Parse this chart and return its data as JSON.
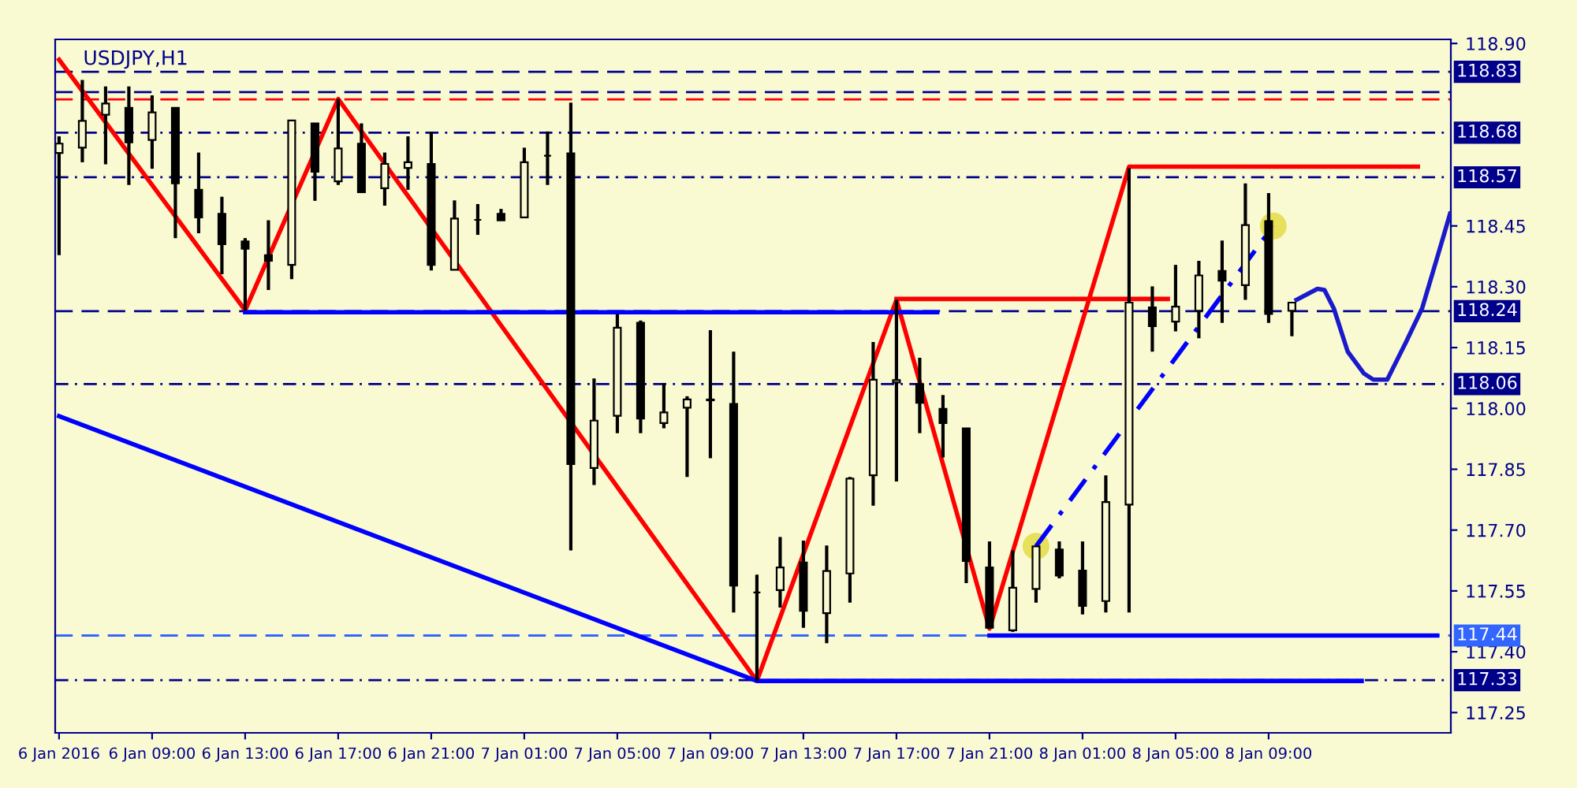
{
  "chart_data": {
    "type": "candlestick",
    "title": "USDJPY,H1",
    "color": "#000000",
    "x": [
      "2016-01-06T05:00",
      "2016-01-06T06:00",
      "2016-01-06T07:00",
      "2016-01-06T08:00",
      "2016-01-06T09:00",
      "2016-01-06T10:00",
      "2016-01-06T11:00",
      "2016-01-06T12:00",
      "2016-01-06T13:00",
      "2016-01-06T14:00",
      "2016-01-06T15:00",
      "2016-01-06T16:00",
      "2016-01-06T17:00",
      "2016-01-06T18:00",
      "2016-01-06T19:00",
      "2016-01-06T20:00",
      "2016-01-06T21:00",
      "2016-01-06T22:00",
      "2016-01-06T23:00",
      "2016-01-07T00:00",
      "2016-01-07T01:00",
      "2016-01-07T02:00",
      "2016-01-07T03:00",
      "2016-01-07T04:00",
      "2016-01-07T05:00",
      "2016-01-07T06:00",
      "2016-01-07T07:00",
      "2016-01-07T08:00",
      "2016-01-07T09:00",
      "2016-01-07T10:00",
      "2016-01-07T11:00",
      "2016-01-07T12:00",
      "2016-01-07T13:00",
      "2016-01-07T14:00",
      "2016-01-07T15:00",
      "2016-01-07T16:00",
      "2016-01-07T17:00",
      "2016-01-07T18:00",
      "2016-01-07T19:00",
      "2016-01-07T20:00",
      "2016-01-07T21:00",
      "2016-01-07T22:00",
      "2016-01-07T23:00",
      "2016-01-08T00:00",
      "2016-01-08T01:00",
      "2016-01-08T02:00",
      "2016-01-08T03:00",
      "2016-01-08T04:00",
      "2016-01-08T05:00",
      "2016-01-08T06:00",
      "2016-01-08T07:00",
      "2016-01-08T08:00",
      "2016-01-08T09:00",
      "2016-01-08T10:00"
    ],
    "ohlc": [
      [
        118.63,
        118.671,
        118.378,
        118.653
      ],
      [
        118.643,
        118.81,
        118.607,
        118.709
      ],
      [
        118.724,
        118.794,
        118.602,
        118.752
      ],
      [
        118.741,
        118.794,
        118.551,
        118.656
      ],
      [
        118.662,
        118.772,
        118.591,
        118.73
      ],
      [
        118.741,
        118.741,
        118.42,
        118.555
      ],
      [
        118.539,
        118.631,
        118.432,
        118.471
      ],
      [
        118.48,
        118.522,
        118.331,
        118.405
      ],
      [
        118.412,
        118.42,
        118.241,
        118.394
      ],
      [
        118.378,
        118.464,
        118.292,
        118.364
      ],
      [
        118.354,
        118.71,
        118.319,
        118.71
      ],
      [
        118.703,
        118.703,
        118.512,
        118.584
      ],
      [
        118.56,
        118.763,
        118.551,
        118.641
      ],
      [
        118.653,
        118.703,
        118.531,
        118.533
      ],
      [
        118.543,
        118.631,
        118.5,
        118.603
      ],
      [
        118.593,
        118.671,
        118.539,
        118.607
      ],
      [
        118.603,
        118.682,
        118.34,
        118.354
      ],
      [
        118.342,
        118.513,
        118.342,
        118.468
      ],
      [
        118.465,
        118.504,
        118.428,
        118.465
      ],
      [
        118.48,
        118.492,
        118.464,
        118.464
      ],
      [
        118.471,
        118.643,
        118.471,
        118.607
      ],
      [
        118.623,
        118.683,
        118.551,
        118.623
      ],
      [
        118.629,
        118.754,
        117.65,
        117.863
      ],
      [
        117.853,
        118.074,
        117.811,
        117.97
      ],
      [
        117.982,
        118.233,
        117.939,
        118.199
      ],
      [
        118.211,
        118.217,
        117.939,
        117.975
      ],
      [
        117.964,
        118.062,
        117.951,
        117.99
      ],
      [
        118.002,
        118.03,
        117.831,
        118.022
      ],
      [
        118.02,
        118.193,
        117.877,
        118.022
      ],
      [
        118.011,
        118.14,
        117.497,
        117.563
      ],
      [
        117.546,
        117.59,
        117.328,
        117.546
      ],
      [
        117.552,
        117.683,
        117.509,
        117.608
      ],
      [
        117.62,
        117.674,
        117.459,
        117.501
      ],
      [
        117.495,
        117.662,
        117.421,
        117.599
      ],
      [
        117.593,
        117.831,
        117.521,
        117.827
      ],
      [
        117.835,
        118.164,
        117.76,
        118.071
      ],
      [
        118.064,
        118.268,
        117.82,
        118.07
      ],
      [
        118.06,
        118.125,
        117.939,
        118.014
      ],
      [
        117.999,
        118.033,
        117.879,
        117.964
      ],
      [
        117.951,
        117.951,
        117.569,
        117.624
      ],
      [
        117.608,
        117.672,
        117.459,
        117.459
      ],
      [
        117.453,
        117.65,
        117.449,
        117.558
      ],
      [
        117.555,
        117.66,
        117.521,
        117.66
      ],
      [
        117.652,
        117.672,
        117.581,
        117.588
      ],
      [
        117.6,
        117.672,
        117.492,
        117.513
      ],
      [
        117.525,
        117.835,
        117.497,
        117.769
      ],
      [
        117.763,
        118.593,
        117.497,
        118.261
      ],
      [
        118.249,
        118.301,
        118.14,
        118.203
      ],
      [
        118.214,
        118.354,
        118.19,
        118.251
      ],
      [
        118.241,
        118.364,
        118.173,
        118.328
      ],
      [
        118.339,
        118.414,
        118.211,
        118.315
      ],
      [
        118.304,
        118.555,
        118.268,
        118.452
      ],
      [
        118.462,
        118.531,
        118.211,
        118.233
      ],
      [
        118.241,
        118.261,
        118.178,
        118.261
      ]
    ],
    "series": [
      {
        "type": "line",
        "color": "#ff0000",
        "x": [
          "2016-01-06T05:00",
          "2016-01-06T13:00",
          "2016-01-06T17:00",
          "2016-01-07T11:00",
          "2016-01-07T17:00",
          "2016-01-07T21:00",
          "2016-01-08T03:00",
          "2016-01-08T15:25"
        ],
        "values": [
          118.86,
          118.242,
          118.763,
          117.328,
          118.268,
          117.457,
          118.596,
          118.596
        ]
      },
      {
        "type": "line",
        "color": "#0000ff",
        "x": [
          "2016-01-06T13:00",
          "2016-01-07T18:45"
        ],
        "values": [
          118.237,
          118.237
        ]
      },
      {
        "type": "line",
        "color": "#0000ff",
        "x": [
          "2016-01-07T21:00",
          "2016-01-08T16:15"
        ],
        "values": [
          117.44,
          117.44
        ]
      },
      {
        "type": "line",
        "color": "#ff0000",
        "x": [
          "2016-01-07T17:00",
          "2016-01-08T04:40"
        ],
        "values": [
          118.27,
          118.27
        ]
      },
      {
        "type": "line",
        "color": "#0000ff",
        "x": [
          "2016-01-06T05:00",
          "2016-01-07T11:00",
          "2016-01-08T13:00"
        ],
        "values": [
          117.981,
          117.328,
          117.328
        ]
      },
      {
        "type": "line",
        "color": "#0000ff",
        "line_style": "dotted",
        "x": [
          "2016-01-07T23:00",
          "2016-01-08T09:12"
        ],
        "values": [
          117.66,
          118.45
        ]
      },
      {
        "type": "scatter",
        "color": "#e6e05a",
        "x": [
          "2016-01-07T23:00",
          "2016-01-08T09:12"
        ],
        "values": [
          117.66,
          118.45
        ]
      },
      {
        "type": "line",
        "color": "#1a1acc",
        "x": [
          "2016-01-08T10:12",
          "2016-01-08T11:06",
          "2016-01-08T11:24",
          "2016-01-08T11:48",
          "2016-01-08T12:24",
          "2016-01-08T13:06",
          "2016-01-08T13:30",
          "2016-01-08T14:06",
          "2016-01-08T14:54",
          "2016-01-08T15:36",
          "2016-01-08T16:24",
          "2016-01-08T16:48"
        ],
        "values": [
          118.268,
          118.295,
          118.292,
          118.247,
          118.14,
          118.086,
          118.071,
          118.071,
          118.163,
          118.247,
          118.402,
          118.48
        ]
      }
    ],
    "ref_lines": [
      {
        "axis": "y",
        "value": 118.83,
        "label": "118.83",
        "color": "#00008b",
        "line_style": "dashed"
      },
      {
        "axis": "y",
        "value": 118.78,
        "label": null,
        "color": "#00008b",
        "line_style": "dashed"
      },
      {
        "axis": "y",
        "value": 118.762,
        "label": null,
        "color": "#ff0000",
        "line_style": "dashed"
      },
      {
        "axis": "y",
        "value": 118.68,
        "label": "118.68",
        "color": "#00008b",
        "line_style": "dotted"
      },
      {
        "axis": "y",
        "value": 118.57,
        "label": "118.57",
        "color": "#00008b",
        "line_style": "dotted"
      },
      {
        "axis": "y",
        "value": 118.24,
        "label": "118.24",
        "color": "#00008b",
        "line_style": "dashed"
      },
      {
        "axis": "y",
        "value": 118.06,
        "label": "118.06",
        "color": "#00008b",
        "line_style": "dotted"
      },
      {
        "axis": "y",
        "value": 117.44,
        "label": "117.44",
        "color": "#3366ff",
        "line_style": "dashed"
      },
      {
        "axis": "y",
        "value": 117.33,
        "label": "117.33",
        "color": "#00008b",
        "line_style": "dotted"
      }
    ],
    "xlim": [
      "2016-01-06T04:50",
      "2016-01-08T16:50"
    ],
    "xticks": [
      {
        "value": "2016-01-06T05:00",
        "label": "6 Jan 2016"
      },
      {
        "value": "2016-01-06T09:00",
        "label": "6 Jan 09:00"
      },
      {
        "value": "2016-01-06T13:00",
        "label": "6 Jan 13:00"
      },
      {
        "value": "2016-01-06T17:00",
        "label": "6 Jan 17:00"
      },
      {
        "value": "2016-01-06T21:00",
        "label": "6 Jan 21:00"
      },
      {
        "value": "2016-01-07T01:00",
        "label": "7 Jan 01:00"
      },
      {
        "value": "2016-01-07T05:00",
        "label": "7 Jan 05:00"
      },
      {
        "value": "2016-01-07T09:00",
        "label": "7 Jan 09:00"
      },
      {
        "value": "2016-01-07T13:00",
        "label": "7 Jan 13:00"
      },
      {
        "value": "2016-01-07T17:00",
        "label": "7 Jan 17:00"
      },
      {
        "value": "2016-01-07T21:00",
        "label": "7 Jan 21:00"
      },
      {
        "value": "2016-01-08T01:00",
        "label": "8 Jan 01:00"
      },
      {
        "value": "2016-01-08T05:00",
        "label": "8 Jan 05:00"
      },
      {
        "value": "2016-01-08T09:00",
        "label": "8 Jan 09:00"
      }
    ],
    "ylim": [
      117.2,
      118.91
    ],
    "yticks": [
      {
        "value": 118.9,
        "label": "118.90"
      },
      {
        "value": 118.45,
        "label": "118.45"
      },
      {
        "value": 118.3,
        "label": "118.30"
      },
      {
        "value": 118.15,
        "label": "118.15"
      },
      {
        "value": 118.0,
        "label": "118.00"
      },
      {
        "value": 117.85,
        "label": "117.85"
      },
      {
        "value": 117.7,
        "label": "117.70"
      },
      {
        "value": 117.55,
        "label": "117.55"
      },
      {
        "value": 117.4,
        "label": "117.40"
      },
      {
        "value": 117.25,
        "label": "117.25"
      }
    ]
  }
}
